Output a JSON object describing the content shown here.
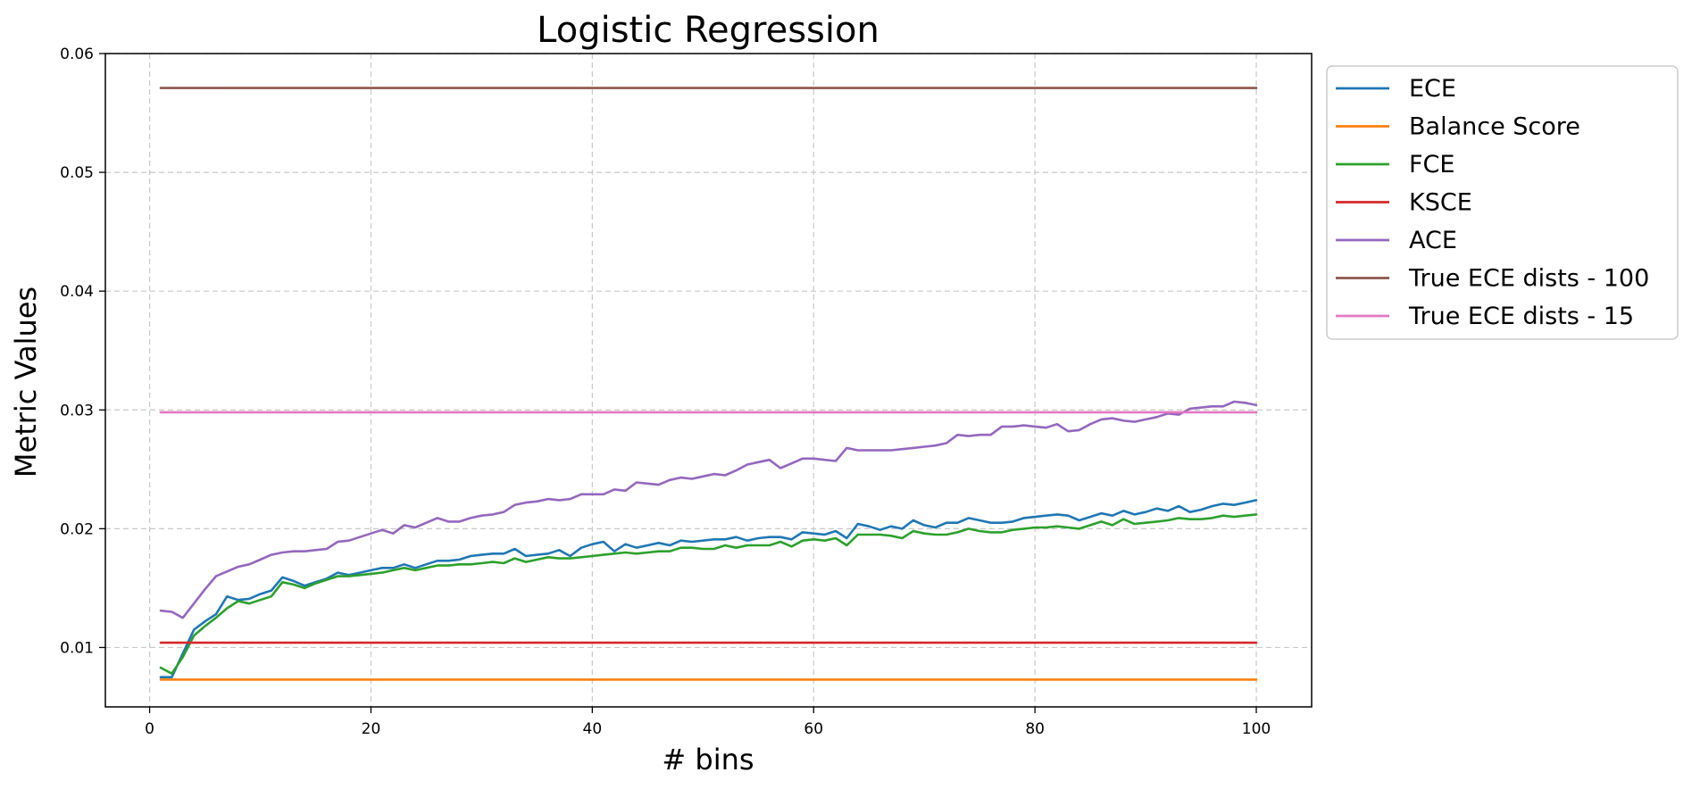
{
  "chart_data": {
    "type": "line",
    "title": "Logistic Regression",
    "xlabel": "# bins",
    "ylabel": "Metric Values",
    "xlim": [
      -4,
      105
    ],
    "ylim": [
      0.005,
      0.06
    ],
    "xticks": [
      0,
      20,
      40,
      60,
      80,
      100
    ],
    "xtick_labels": [
      "0",
      "20",
      "40",
      "60",
      "80",
      "100"
    ],
    "yticks": [
      0.01,
      0.02,
      0.03,
      0.04,
      0.05,
      0.06
    ],
    "ytick_labels": [
      "0.01",
      "0.02",
      "0.03",
      "0.04",
      "0.05",
      "0.06"
    ],
    "grid": true,
    "legend_position": "outside upper right",
    "series": [
      {
        "name": "ECE",
        "color": "#1f77b4",
        "x": [
          1,
          2,
          3,
          4,
          5,
          6,
          7,
          8,
          9,
          10,
          11,
          12,
          13,
          14,
          15,
          16,
          17,
          18,
          19,
          20,
          21,
          22,
          23,
          24,
          25,
          26,
          27,
          28,
          29,
          30,
          31,
          32,
          33,
          34,
          35,
          36,
          37,
          38,
          39,
          40,
          41,
          42,
          43,
          44,
          45,
          46,
          47,
          48,
          49,
          50,
          51,
          52,
          53,
          54,
          55,
          56,
          57,
          58,
          59,
          60,
          61,
          62,
          63,
          64,
          65,
          66,
          67,
          68,
          69,
          70,
          71,
          72,
          73,
          74,
          75,
          76,
          77,
          78,
          79,
          80,
          81,
          82,
          83,
          84,
          85,
          86,
          87,
          88,
          89,
          90,
          91,
          92,
          93,
          94,
          95,
          96,
          97,
          98,
          99,
          100
        ],
        "y": [
          0.0075,
          0.0075,
          0.0095,
          0.0115,
          0.0122,
          0.0128,
          0.0143,
          0.014,
          0.0141,
          0.0145,
          0.0148,
          0.0159,
          0.0156,
          0.0152,
          0.0155,
          0.0158,
          0.0163,
          0.0161,
          0.0163,
          0.0165,
          0.0167,
          0.0167,
          0.017,
          0.0167,
          0.017,
          0.0173,
          0.0173,
          0.0174,
          0.0177,
          0.0178,
          0.0179,
          0.0179,
          0.0183,
          0.0177,
          0.0178,
          0.0179,
          0.0182,
          0.0177,
          0.0184,
          0.0187,
          0.0189,
          0.0181,
          0.0187,
          0.0184,
          0.0186,
          0.0188,
          0.0186,
          0.019,
          0.0189,
          0.019,
          0.0191,
          0.0191,
          0.0193,
          0.019,
          0.0192,
          0.0193,
          0.0193,
          0.0191,
          0.0197,
          0.0196,
          0.0195,
          0.0198,
          0.0192,
          0.0204,
          0.0202,
          0.0199,
          0.0202,
          0.02,
          0.0207,
          0.0203,
          0.0201,
          0.0205,
          0.0205,
          0.0209,
          0.0207,
          0.0205,
          0.0205,
          0.0206,
          0.0209,
          0.021,
          0.0211,
          0.0212,
          0.0211,
          0.0207,
          0.021,
          0.0213,
          0.0211,
          0.0215,
          0.0212,
          0.0214,
          0.0217,
          0.0215,
          0.0219,
          0.0214,
          0.0216,
          0.0219,
          0.0221,
          0.022,
          0.0222,
          0.0224
        ]
      },
      {
        "name": "Balance Score",
        "color": "#ff7f0e",
        "x": [
          1,
          100
        ],
        "y": [
          0.0073,
          0.0073
        ]
      },
      {
        "name": "FCE",
        "color": "#2ca02c",
        "x": [
          1,
          2,
          3,
          4,
          5,
          6,
          7,
          8,
          9,
          10,
          11,
          12,
          13,
          14,
          15,
          16,
          17,
          18,
          19,
          20,
          21,
          22,
          23,
          24,
          25,
          26,
          27,
          28,
          29,
          30,
          31,
          32,
          33,
          34,
          35,
          36,
          37,
          38,
          39,
          40,
          41,
          42,
          43,
          44,
          45,
          46,
          47,
          48,
          49,
          50,
          51,
          52,
          53,
          54,
          55,
          56,
          57,
          58,
          59,
          60,
          61,
          62,
          63,
          64,
          65,
          66,
          67,
          68,
          69,
          70,
          71,
          72,
          73,
          74,
          75,
          76,
          77,
          78,
          79,
          80,
          81,
          82,
          83,
          84,
          85,
          86,
          87,
          88,
          89,
          90,
          91,
          92,
          93,
          94,
          95,
          96,
          97,
          98,
          99,
          100
        ],
        "y": [
          0.0083,
          0.0078,
          0.0092,
          0.011,
          0.0118,
          0.0125,
          0.0133,
          0.0139,
          0.0137,
          0.014,
          0.0143,
          0.0155,
          0.0153,
          0.015,
          0.0154,
          0.0157,
          0.016,
          0.016,
          0.0161,
          0.0162,
          0.0163,
          0.0165,
          0.0167,
          0.0165,
          0.0167,
          0.0169,
          0.0169,
          0.017,
          0.017,
          0.0171,
          0.0172,
          0.0171,
          0.0175,
          0.0172,
          0.0174,
          0.0176,
          0.0175,
          0.0175,
          0.0176,
          0.0177,
          0.0178,
          0.0179,
          0.018,
          0.0179,
          0.018,
          0.0181,
          0.0181,
          0.0184,
          0.0184,
          0.0183,
          0.0183,
          0.0186,
          0.0184,
          0.0186,
          0.0186,
          0.0186,
          0.0189,
          0.0185,
          0.019,
          0.0191,
          0.019,
          0.0192,
          0.0186,
          0.0195,
          0.0195,
          0.0195,
          0.0194,
          0.0192,
          0.0198,
          0.0196,
          0.0195,
          0.0195,
          0.0197,
          0.02,
          0.0198,
          0.0197,
          0.0197,
          0.0199,
          0.02,
          0.0201,
          0.0201,
          0.0202,
          0.0201,
          0.02,
          0.0203,
          0.0206,
          0.0203,
          0.0208,
          0.0204,
          0.0205,
          0.0206,
          0.0207,
          0.0209,
          0.0208,
          0.0208,
          0.0209,
          0.0211,
          0.021,
          0.0211,
          0.0212
        ]
      },
      {
        "name": "KSCE",
        "color": "#d62728",
        "x": [
          1,
          100
        ],
        "y": [
          0.0104,
          0.0104
        ]
      },
      {
        "name": "ACE",
        "color": "#9467bd",
        "x": [
          1,
          2,
          3,
          4,
          5,
          6,
          7,
          8,
          9,
          10,
          11,
          12,
          13,
          14,
          15,
          16,
          17,
          18,
          19,
          20,
          21,
          22,
          23,
          24,
          25,
          26,
          27,
          28,
          29,
          30,
          31,
          32,
          33,
          34,
          35,
          36,
          37,
          38,
          39,
          40,
          41,
          42,
          43,
          44,
          45,
          46,
          47,
          48,
          49,
          50,
          51,
          52,
          53,
          54,
          55,
          56,
          57,
          58,
          59,
          60,
          61,
          62,
          63,
          64,
          65,
          66,
          67,
          68,
          69,
          70,
          71,
          72,
          73,
          74,
          75,
          76,
          77,
          78,
          79,
          80,
          81,
          82,
          83,
          84,
          85,
          86,
          87,
          88,
          89,
          90,
          91,
          92,
          93,
          94,
          95,
          96,
          97,
          98,
          99,
          100
        ],
        "y": [
          0.0131,
          0.013,
          0.0125,
          0.0137,
          0.0149,
          0.016,
          0.0164,
          0.0168,
          0.017,
          0.0174,
          0.0178,
          0.018,
          0.0181,
          0.0181,
          0.0182,
          0.0183,
          0.0189,
          0.019,
          0.0193,
          0.0196,
          0.0199,
          0.0196,
          0.0203,
          0.0201,
          0.0205,
          0.0209,
          0.0206,
          0.0206,
          0.0209,
          0.0211,
          0.0212,
          0.0214,
          0.022,
          0.0222,
          0.0223,
          0.0225,
          0.0224,
          0.0225,
          0.0229,
          0.0229,
          0.0229,
          0.0233,
          0.0232,
          0.0239,
          0.0238,
          0.0237,
          0.0241,
          0.0243,
          0.0242,
          0.0244,
          0.0246,
          0.0245,
          0.0249,
          0.0254,
          0.0256,
          0.0258,
          0.0251,
          0.0255,
          0.0259,
          0.0259,
          0.0258,
          0.0257,
          0.0268,
          0.0266,
          0.0266,
          0.0266,
          0.0266,
          0.0267,
          0.0268,
          0.0269,
          0.027,
          0.0272,
          0.0279,
          0.0278,
          0.0279,
          0.0279,
          0.0286,
          0.0286,
          0.0287,
          0.0286,
          0.0285,
          0.0288,
          0.0282,
          0.0283,
          0.0288,
          0.0292,
          0.0293,
          0.0291,
          0.029,
          0.0292,
          0.0294,
          0.0297,
          0.0296,
          0.0301,
          0.0302,
          0.0303,
          0.0303,
          0.0307,
          0.0306,
          0.0304
        ]
      },
      {
        "name": "True ECE dists - 100",
        "color": "#8c564b",
        "x": [
          1,
          100
        ],
        "y": [
          0.0571,
          0.0571
        ]
      },
      {
        "name": "True ECE dists - 15",
        "color": "#e377c2",
        "x": [
          1,
          100
        ],
        "y": [
          0.0298,
          0.0298
        ]
      }
    ]
  }
}
